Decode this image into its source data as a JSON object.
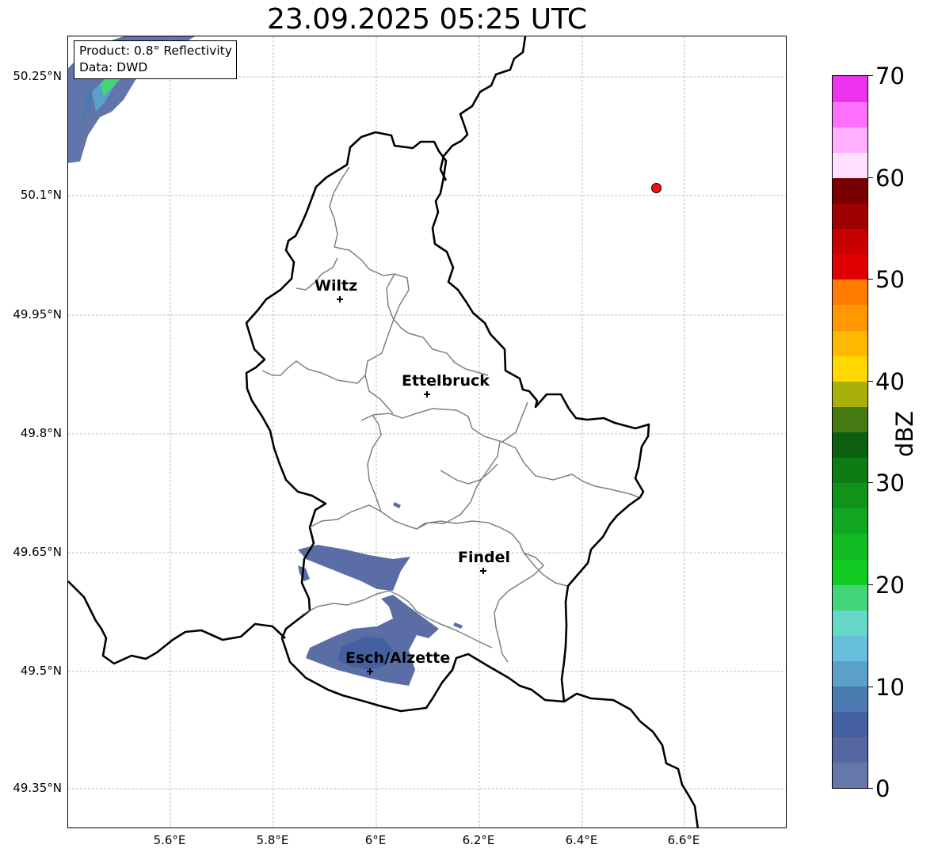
{
  "title": "23.09.2025 05:25 UTC",
  "info_box": {
    "product": "Product: 0.8° Reflectivity",
    "data": "Data: DWD"
  },
  "axes": {
    "lat_labels": [
      "50.25°N",
      "50.1°N",
      "49.95°N",
      "49.8°N",
      "49.65°N",
      "49.5°N",
      "49.35°N"
    ],
    "lon_labels": [
      "5.6°E",
      "5.8°E",
      "6°E",
      "6.2°E",
      "6.4°E",
      "6.6°E"
    ],
    "lat_range": [
      49.3,
      50.3
    ],
    "lon_range": [
      5.4,
      6.8
    ],
    "gridlines": true
  },
  "cities": [
    {
      "name": "Wiltz",
      "lat": 49.97,
      "lon": 5.93
    },
    {
      "name": "Ettelbruck",
      "lat": 49.85,
      "lon": 6.1
    },
    {
      "name": "Findel",
      "lat": 49.627,
      "lon": 6.21
    },
    {
      "name": "Esch/Alzette",
      "lat": 49.5,
      "lon": 5.99
    }
  ],
  "radar_site": {
    "lat": 50.11,
    "lon": 6.55,
    "color": "#ee1111"
  },
  "colorbar": {
    "unit": "dBZ",
    "min": 0,
    "max": 70,
    "tick_labels": [
      "0",
      "10",
      "20",
      "30",
      "40",
      "50",
      "60",
      "70"
    ],
    "colors": [
      "#6677aa",
      "#5566a0",
      "#4460a0",
      "#4a7ab0",
      "#5aa0c8",
      "#66c0dd",
      "#66d8c8",
      "#44d47a",
      "#11cc22",
      "#11bb22",
      "#11a622",
      "#11921a",
      "#0e7c14",
      "#0a6010",
      "#447a11",
      "#aab00a",
      "#ffd800",
      "#ffb800",
      "#ff9800",
      "#ff7c00",
      "#e00000",
      "#c80000",
      "#a00000",
      "#780000",
      "#ffe0ff",
      "#ffb0ff",
      "#ff70ff",
      "#ee33ee"
    ]
  },
  "colors": {
    "country_border": "#000000",
    "canton_border": "#808080",
    "grid": "#b0b0b0",
    "radar_echo": "#5a6ea5"
  }
}
